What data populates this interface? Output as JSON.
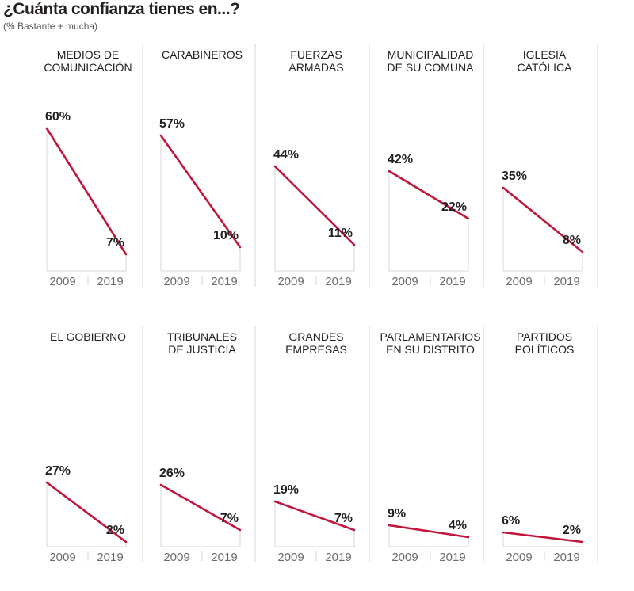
{
  "header": {
    "title": "¿Cuánta confianza tienes en...?",
    "subtitle": "(% Bastante + mucha)"
  },
  "colors": {
    "line": "#c0163c",
    "grid": "#d6d6d6",
    "text": "#231f20",
    "axis_text": "#6b6b6b"
  },
  "chart_data": [
    {
      "type": "line",
      "title": [
        "MEDIOS DE",
        "COMUNICACIÓN"
      ],
      "x": [
        "2009",
        "2019"
      ],
      "values": [
        60,
        7
      ],
      "labels": [
        "60%",
        "7%"
      ],
      "ylim": [
        0,
        70
      ]
    },
    {
      "type": "line",
      "title": [
        "CARABINEROS"
      ],
      "x": [
        "2009",
        "2019"
      ],
      "values": [
        57,
        10
      ],
      "labels": [
        "57%",
        "10%"
      ],
      "ylim": [
        0,
        70
      ]
    },
    {
      "type": "line",
      "title": [
        "FUERZAS",
        "ARMADAS"
      ],
      "x": [
        "2009",
        "2019"
      ],
      "values": [
        44,
        11
      ],
      "labels": [
        "44%",
        "11%"
      ],
      "ylim": [
        0,
        70
      ]
    },
    {
      "type": "line",
      "title": [
        "MUNICIPALIDAD",
        "DE SU COMUNA"
      ],
      "x": [
        "2009",
        "2019"
      ],
      "values": [
        42,
        22
      ],
      "labels": [
        "42%",
        "22%"
      ],
      "ylim": [
        0,
        70
      ]
    },
    {
      "type": "line",
      "title": [
        "IGLESIA",
        "CATÓLICA"
      ],
      "x": [
        "2009",
        "2019"
      ],
      "values": [
        35,
        8
      ],
      "labels": [
        "35%",
        "8%"
      ],
      "ylim": [
        0,
        70
      ]
    },
    {
      "type": "line",
      "title": [
        "EL GOBIERNO"
      ],
      "x": [
        "2009",
        "2019"
      ],
      "values": [
        27,
        2
      ],
      "labels": [
        "27%",
        "2%"
      ],
      "ylim": [
        0,
        70
      ]
    },
    {
      "type": "line",
      "title": [
        "TRIBUNALES",
        "DE JUSTICIA"
      ],
      "x": [
        "2009",
        "2019"
      ],
      "values": [
        26,
        7
      ],
      "labels": [
        "26%",
        "7%"
      ],
      "ylim": [
        0,
        70
      ]
    },
    {
      "type": "line",
      "title": [
        "GRANDES",
        "EMPRESAS"
      ],
      "x": [
        "2009",
        "2019"
      ],
      "values": [
        19,
        7
      ],
      "labels": [
        "19%",
        "7%"
      ],
      "ylim": [
        0,
        70
      ]
    },
    {
      "type": "line",
      "title": [
        "PARLAMENTARIOS",
        "EN SU DISTRITO"
      ],
      "x": [
        "2009",
        "2019"
      ],
      "values": [
        9,
        4
      ],
      "labels": [
        "9%",
        "4%"
      ],
      "ylim": [
        0,
        70
      ]
    },
    {
      "type": "line",
      "title": [
        "PARTIDOS",
        "POLÍTICOS"
      ],
      "x": [
        "2009",
        "2019"
      ],
      "values": [
        6,
        2
      ],
      "labels": [
        "6%",
        "2%"
      ],
      "ylim": [
        0,
        70
      ]
    }
  ]
}
